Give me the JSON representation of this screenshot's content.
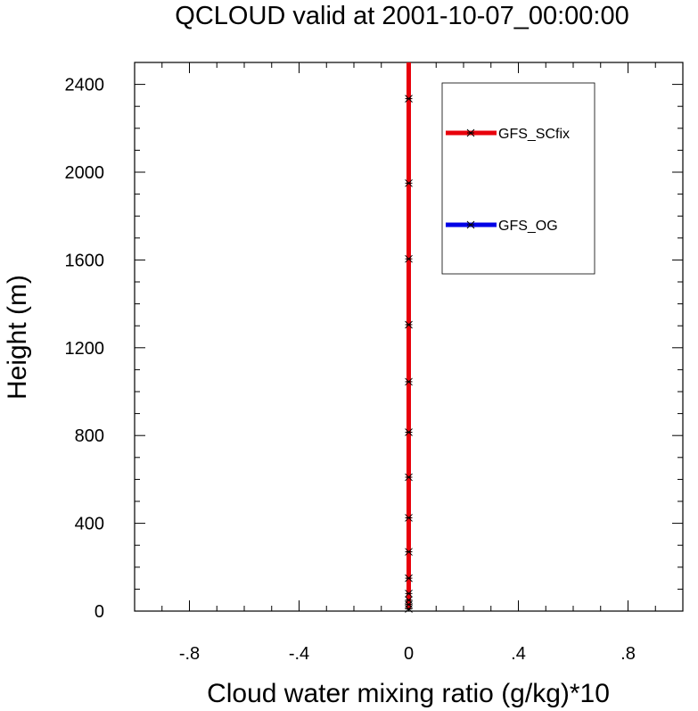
{
  "chart_data": {
    "type": "line",
    "title": "QCLOUD valid at 2001-10-07_00:00:00",
    "xlabel": "Cloud water mixing ratio (g/kg)*10",
    "ylabel": "Height (m)",
    "xlim": [
      -1.0,
      1.0
    ],
    "ylim": [
      0,
      2500
    ],
    "x_ticks": [
      -0.8,
      -0.4,
      0,
      0.4,
      0.8
    ],
    "x_tick_labels": [
      "-.8",
      "-.4",
      "0",
      ".4",
      ".8"
    ],
    "y_ticks": [
      0,
      400,
      800,
      1200,
      1600,
      2000,
      2400
    ],
    "y_tick_labels": [
      "0",
      "400",
      "800",
      "1200",
      "1600",
      "2000",
      "2400"
    ],
    "heights": [
      10,
      30,
      50,
      80,
      150,
      270,
      425,
      610,
      815,
      1045,
      1305,
      1605,
      1950,
      2335,
      2500
    ],
    "marker_heights": [
      10,
      30,
      50,
      80,
      150,
      270,
      425,
      610,
      815,
      1045,
      1305,
      1605,
      1950,
      2335
    ],
    "series": [
      {
        "name": "GFS_SCfix",
        "color": "#e8000b",
        "values": [
          0,
          0,
          0,
          0,
          0,
          0,
          0,
          0,
          0,
          0,
          0,
          0,
          0,
          0,
          0
        ]
      },
      {
        "name": "GFS_OG",
        "color": "#0000e6",
        "values": [
          0,
          0,
          0,
          0,
          0,
          0,
          0,
          0,
          0,
          0,
          0,
          0,
          0,
          0,
          0
        ]
      }
    ],
    "legend_position": "top-right",
    "grid": false
  }
}
